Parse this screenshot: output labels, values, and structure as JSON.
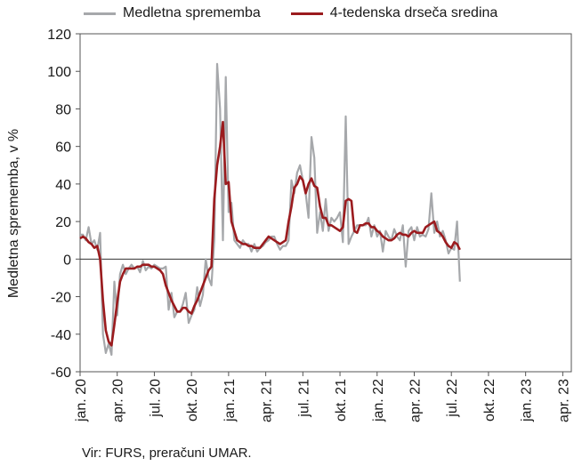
{
  "legend": {
    "series1": "Medletna sprememba",
    "series2": "4-tedenska drseča sredina"
  },
  "source": "Vir: FURS, preračuni UMAR.",
  "chart_data": {
    "type": "line",
    "ylabel": "Medletna sprememba, v %",
    "ylim": [
      -60,
      120
    ],
    "yticks": [
      -60,
      -40,
      -20,
      0,
      20,
      40,
      60,
      80,
      100,
      120
    ],
    "xlim": [
      0,
      172
    ],
    "xticks": [
      {
        "x": 0,
        "label": "jan. 20"
      },
      {
        "x": 13,
        "label": "apr. 20"
      },
      {
        "x": 26,
        "label": "jul. 20"
      },
      {
        "x": 39,
        "label": "okt. 20"
      },
      {
        "x": 52,
        "label": "jan. 21"
      },
      {
        "x": 65,
        "label": "apr. 21"
      },
      {
        "x": 78,
        "label": "jul. 21"
      },
      {
        "x": 91,
        "label": "okt. 21"
      },
      {
        "x": 104,
        "label": "jan. 22"
      },
      {
        "x": 117,
        "label": "apr. 22"
      },
      {
        "x": 130,
        "label": "jul. 22"
      },
      {
        "x": 143,
        "label": "okt. 22"
      },
      {
        "x": 156,
        "label": "jan. 23"
      },
      {
        "x": 169,
        "label": "apr. 23"
      }
    ],
    "grid": false,
    "legend_position": "top",
    "series": [
      {
        "name": "Medletna sprememba",
        "color": "#a6a8ab",
        "points": [
          [
            0,
            13
          ],
          [
            1,
            13
          ],
          [
            2,
            10
          ],
          [
            3,
            17
          ],
          [
            4,
            8
          ],
          [
            5,
            10
          ],
          [
            6,
            5
          ],
          [
            7,
            14
          ],
          [
            8,
            -40
          ],
          [
            9,
            -50
          ],
          [
            10,
            -45
          ],
          [
            11,
            -51
          ],
          [
            12,
            -12
          ],
          [
            13,
            -30
          ],
          [
            14,
            -8
          ],
          [
            15,
            -3
          ],
          [
            16,
            -8
          ],
          [
            17,
            -5
          ],
          [
            18,
            -3
          ],
          [
            19,
            -5
          ],
          [
            20,
            -4
          ],
          [
            21,
            -7
          ],
          [
            22,
            -1
          ],
          [
            23,
            -6
          ],
          [
            24,
            -4
          ],
          [
            25,
            -5
          ],
          [
            26,
            -3
          ],
          [
            27,
            -4
          ],
          [
            28,
            -5
          ],
          [
            29,
            -5
          ],
          [
            30,
            -4
          ],
          [
            31,
            -27
          ],
          [
            32,
            -18
          ],
          [
            33,
            -31
          ],
          [
            34,
            -28
          ],
          [
            35,
            -28
          ],
          [
            36,
            -24
          ],
          [
            37,
            -18
          ],
          [
            38,
            -34
          ],
          [
            39,
            -30
          ],
          [
            40,
            -27
          ],
          [
            41,
            -15
          ],
          [
            42,
            -25
          ],
          [
            43,
            -19
          ],
          [
            44,
            0
          ],
          [
            45,
            -10
          ],
          [
            46,
            -14
          ],
          [
            47,
            10
          ],
          [
            48,
            104
          ],
          [
            49,
            80
          ],
          [
            50,
            10
          ],
          [
            51,
            97
          ],
          [
            52,
            25
          ],
          [
            53,
            30
          ],
          [
            54,
            10
          ],
          [
            55,
            8
          ],
          [
            56,
            6
          ],
          [
            57,
            10
          ],
          [
            58,
            8
          ],
          [
            59,
            8
          ],
          [
            60,
            4
          ],
          [
            61,
            8
          ],
          [
            62,
            4
          ],
          [
            63,
            6
          ],
          [
            64,
            7
          ],
          [
            65,
            9
          ],
          [
            66,
            10
          ],
          [
            67,
            12
          ],
          [
            68,
            12
          ],
          [
            69,
            8
          ],
          [
            70,
            5
          ],
          [
            71,
            7
          ],
          [
            72,
            7
          ],
          [
            73,
            10
          ],
          [
            74,
            42
          ],
          [
            75,
            35
          ],
          [
            76,
            46
          ],
          [
            77,
            50
          ],
          [
            78,
            42
          ],
          [
            79,
            35
          ],
          [
            80,
            22
          ],
          [
            81,
            65
          ],
          [
            82,
            54
          ],
          [
            83,
            14
          ],
          [
            84,
            25
          ],
          [
            85,
            15
          ],
          [
            86,
            32
          ],
          [
            87,
            15
          ],
          [
            88,
            22
          ],
          [
            89,
            20
          ],
          [
            90,
            22
          ],
          [
            91,
            25
          ],
          [
            92,
            9
          ],
          [
            93,
            76
          ],
          [
            94,
            8
          ],
          [
            95,
            12
          ],
          [
            96,
            15
          ],
          [
            97,
            18
          ],
          [
            98,
            18
          ],
          [
            99,
            18
          ],
          [
            100,
            18
          ],
          [
            101,
            22
          ],
          [
            102,
            12
          ],
          [
            103,
            18
          ],
          [
            104,
            12
          ],
          [
            105,
            15
          ],
          [
            106,
            4
          ],
          [
            107,
            15
          ],
          [
            108,
            12
          ],
          [
            109,
            10
          ],
          [
            110,
            16
          ],
          [
            111,
            12
          ],
          [
            112,
            10
          ],
          [
            113,
            18
          ],
          [
            114,
            -4
          ],
          [
            115,
            15
          ],
          [
            116,
            17
          ],
          [
            117,
            10
          ],
          [
            118,
            17
          ],
          [
            119,
            12
          ],
          [
            120,
            13
          ],
          [
            121,
            12
          ],
          [
            122,
            16
          ],
          [
            123,
            35
          ],
          [
            124,
            14
          ],
          [
            125,
            20
          ],
          [
            126,
            12
          ],
          [
            127,
            15
          ],
          [
            128,
            10
          ],
          [
            129,
            3
          ],
          [
            130,
            6
          ],
          [
            131,
            5
          ],
          [
            132,
            20
          ],
          [
            133,
            -12
          ]
        ]
      },
      {
        "name": "4-tedenska drseča sredina",
        "color": "#9b1b1e",
        "points": [
          [
            0,
            11
          ],
          [
            1,
            12
          ],
          [
            2,
            11
          ],
          [
            3,
            9
          ],
          [
            4,
            8
          ],
          [
            5,
            6
          ],
          [
            6,
            7
          ],
          [
            7,
            0
          ],
          [
            8,
            -22
          ],
          [
            9,
            -38
          ],
          [
            10,
            -44
          ],
          [
            11,
            -46
          ],
          [
            12,
            -35
          ],
          [
            13,
            -23
          ],
          [
            14,
            -12
          ],
          [
            15,
            -8
          ],
          [
            16,
            -5
          ],
          [
            17,
            -5
          ],
          [
            18,
            -5
          ],
          [
            19,
            -5
          ],
          [
            20,
            -4
          ],
          [
            21,
            -4
          ],
          [
            22,
            -3
          ],
          [
            23,
            -3
          ],
          [
            24,
            -3
          ],
          [
            25,
            -4
          ],
          [
            26,
            -4
          ],
          [
            27,
            -5
          ],
          [
            28,
            -6
          ],
          [
            29,
            -8
          ],
          [
            30,
            -14
          ],
          [
            31,
            -18
          ],
          [
            32,
            -22
          ],
          [
            33,
            -25
          ],
          [
            34,
            -28
          ],
          [
            35,
            -28
          ],
          [
            36,
            -26
          ],
          [
            37,
            -26
          ],
          [
            38,
            -28
          ],
          [
            39,
            -29
          ],
          [
            40,
            -25
          ],
          [
            41,
            -22
          ],
          [
            42,
            -18
          ],
          [
            43,
            -14
          ],
          [
            44,
            -10
          ],
          [
            45,
            -6
          ],
          [
            46,
            -4
          ],
          [
            47,
            32
          ],
          [
            48,
            50
          ],
          [
            49,
            60
          ],
          [
            50,
            73
          ],
          [
            51,
            40
          ],
          [
            52,
            41
          ],
          [
            53,
            20
          ],
          [
            54,
            15
          ],
          [
            55,
            10
          ],
          [
            56,
            9
          ],
          [
            57,
            8
          ],
          [
            58,
            8
          ],
          [
            59,
            7
          ],
          [
            60,
            7
          ],
          [
            61,
            6
          ],
          [
            62,
            6
          ],
          [
            63,
            6
          ],
          [
            64,
            8
          ],
          [
            65,
            10
          ],
          [
            66,
            12
          ],
          [
            67,
            11
          ],
          [
            68,
            10
          ],
          [
            69,
            9
          ],
          [
            70,
            8
          ],
          [
            71,
            9
          ],
          [
            72,
            10
          ],
          [
            73,
            20
          ],
          [
            74,
            28
          ],
          [
            75,
            38
          ],
          [
            76,
            40
          ],
          [
            77,
            44
          ],
          [
            78,
            42
          ],
          [
            79,
            35
          ],
          [
            80,
            40
          ],
          [
            81,
            43
          ],
          [
            82,
            39
          ],
          [
            83,
            38
          ],
          [
            84,
            28
          ],
          [
            85,
            22
          ],
          [
            86,
            22
          ],
          [
            87,
            18
          ],
          [
            88,
            18
          ],
          [
            89,
            17
          ],
          [
            90,
            16
          ],
          [
            91,
            15
          ],
          [
            92,
            17
          ],
          [
            93,
            31
          ],
          [
            94,
            32
          ],
          [
            95,
            31
          ],
          [
            96,
            15
          ],
          [
            97,
            14
          ],
          [
            98,
            18
          ],
          [
            99,
            18
          ],
          [
            100,
            19
          ],
          [
            101,
            19
          ],
          [
            102,
            17
          ],
          [
            103,
            17
          ],
          [
            104,
            15
          ],
          [
            105,
            14
          ],
          [
            106,
            12
          ],
          [
            107,
            11
          ],
          [
            108,
            10
          ],
          [
            109,
            10
          ],
          [
            110,
            11
          ],
          [
            111,
            13
          ],
          [
            112,
            14
          ],
          [
            113,
            13
          ],
          [
            114,
            13
          ],
          [
            115,
            12
          ],
          [
            116,
            14
          ],
          [
            117,
            15
          ],
          [
            118,
            14
          ],
          [
            119,
            14
          ],
          [
            120,
            14
          ],
          [
            121,
            17
          ],
          [
            122,
            18
          ],
          [
            123,
            19
          ],
          [
            124,
            20
          ],
          [
            125,
            15
          ],
          [
            126,
            14
          ],
          [
            127,
            12
          ],
          [
            128,
            9
          ],
          [
            129,
            7
          ],
          [
            130,
            6
          ],
          [
            131,
            9
          ],
          [
            132,
            8
          ],
          [
            133,
            5
          ]
        ]
      }
    ]
  }
}
